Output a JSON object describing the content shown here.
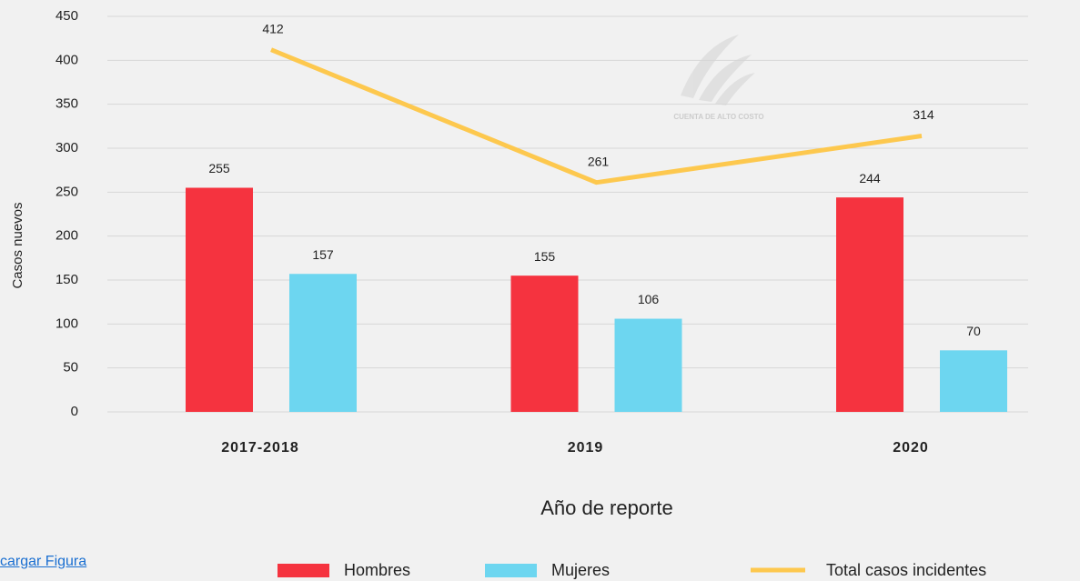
{
  "chart_data": {
    "type": "bar",
    "categories": [
      "2017-2018",
      "2019",
      "2020"
    ],
    "series": [
      {
        "name": "Hombres",
        "type": "bar",
        "color": "#f5333f",
        "values": [
          255,
          155,
          244
        ]
      },
      {
        "name": "Mujeres",
        "type": "bar",
        "color": "#6dd6f0",
        "values": [
          157,
          106,
          70
        ]
      },
      {
        "name": "Total casos incidentes",
        "type": "line",
        "color": "#fdc84e",
        "values": [
          412,
          261,
          314
        ]
      }
    ],
    "ylabel": "Casos nuevos",
    "xlabel": "Año de reporte",
    "ylim": [
      0,
      450
    ],
    "yticks": [
      0,
      50,
      100,
      150,
      200,
      250,
      300,
      350,
      400,
      450
    ],
    "grid": true,
    "legend": "bottom",
    "watermark": "CUENTA DE ALTO COSTO"
  },
  "link": "cargar Figura"
}
